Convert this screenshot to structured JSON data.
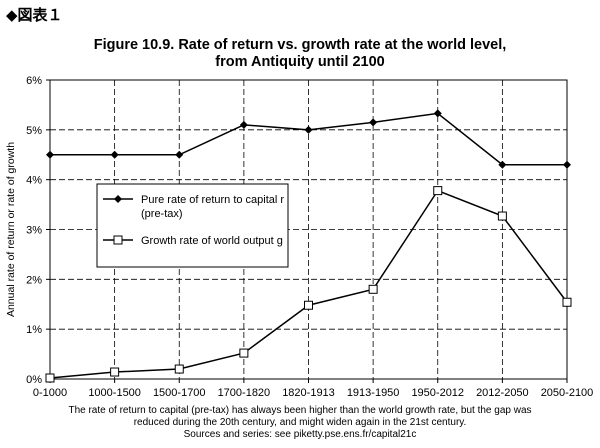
{
  "heading": "◆図表１",
  "chart_data": {
    "type": "line",
    "title_line1": "Figure 10.9. Rate of return vs. growth rate at the world level,",
    "title_line2": "from Antiquity until 2100",
    "ylabel": "Annual rate of return or rate of growth",
    "categories": [
      "0-1000",
      "1000-1500",
      "1500-1700",
      "1700-1820",
      "1820-1913",
      "1913-1950",
      "1950-2012",
      "2012-2050",
      "2050-2100"
    ],
    "ylim": [
      0,
      6
    ],
    "yticks": [
      "0%",
      "1%",
      "2%",
      "3%",
      "4%",
      "5%",
      "6%"
    ],
    "grid": true,
    "legend_position": "left-middle",
    "series": [
      {
        "name_line1": "Pure rate of return to capital r",
        "name_line2": "(pre-tax)",
        "marker": "diamond",
        "values": [
          4.5,
          4.5,
          4.5,
          5.1,
          5.0,
          5.15,
          5.33,
          4.3,
          4.3
        ]
      },
      {
        "name_line1": "Growth rate of world output g",
        "name_line2": "",
        "marker": "square",
        "values": [
          0.02,
          0.14,
          0.2,
          0.52,
          1.48,
          1.8,
          3.78,
          3.27,
          1.54
        ]
      }
    ]
  },
  "footnote": {
    "line1": "The rate of return to capital (pre-tax) has always been higher than the world growth rate, but the gap was",
    "line2": "reduced during the 20th century, and might widen again in the 21st century.",
    "line3": "Sources and series: see piketty.pse.ens.fr/capital21c"
  }
}
